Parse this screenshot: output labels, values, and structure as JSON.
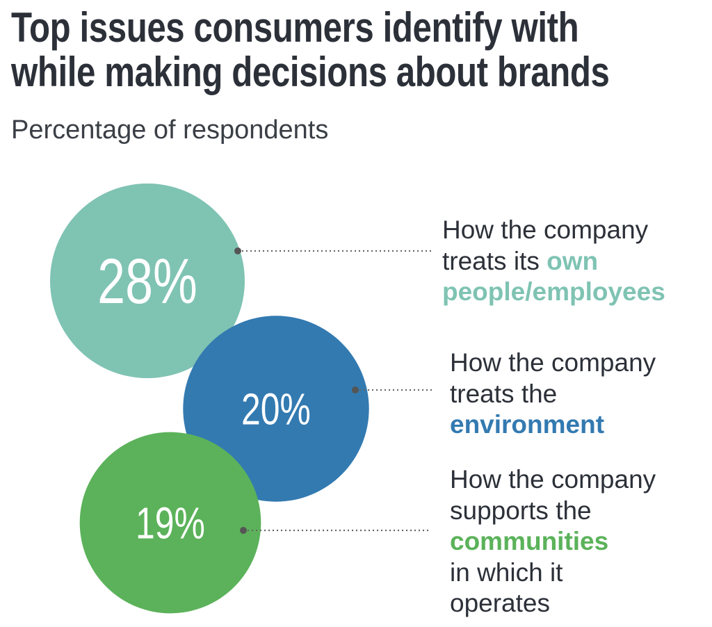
{
  "title_lines": [
    "Top issues consumers identify with",
    "while making decisions about brands"
  ],
  "subtitle": "Percentage of respondents",
  "chart_data": {
    "type": "bubble",
    "title": "Top issues consumers identify with while making decisions about brands",
    "subtitle": "Percentage of respondents",
    "unit": "%",
    "items": [
      {
        "value": 28,
        "value_label": "28%",
        "color": "#7fc3b3",
        "lines": [
          [
            {
              "text": "How the company",
              "hl": false
            }
          ],
          [
            {
              "text": "treats its ",
              "hl": false
            },
            {
              "text": "own",
              "hl": true
            }
          ],
          [
            {
              "text": "people/employees",
              "hl": true
            }
          ]
        ]
      },
      {
        "value": 20,
        "value_label": "20%",
        "color": "#337ab1",
        "lines": [
          [
            {
              "text": "How the company",
              "hl": false
            }
          ],
          [
            {
              "text": "treats the",
              "hl": false
            }
          ],
          [
            {
              "text": "environment",
              "hl": true
            }
          ]
        ]
      },
      {
        "value": 19,
        "value_label": "19%",
        "color": "#5bb25a",
        "lines": [
          [
            {
              "text": "How the company",
              "hl": false
            }
          ],
          [
            {
              "text": "supports the",
              "hl": false
            }
          ],
          [
            {
              "text": "communities",
              "hl": true
            }
          ],
          [
            {
              "text": "in which it",
              "hl": false
            }
          ],
          [
            {
              "text": "operates",
              "hl": false
            }
          ]
        ]
      }
    ]
  }
}
